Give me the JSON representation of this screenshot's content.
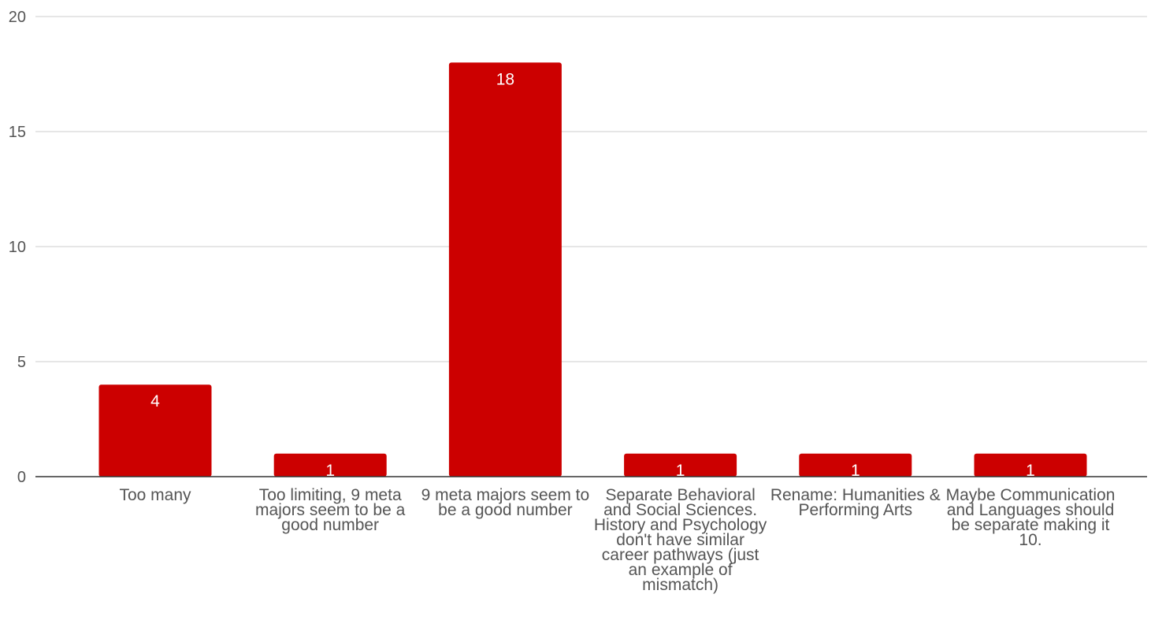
{
  "chart_data": {
    "type": "bar",
    "title": "",
    "xlabel": "",
    "ylabel": "",
    "ylim": [
      0,
      20
    ],
    "yticks": [
      0,
      5,
      10,
      15,
      20
    ],
    "grid": true,
    "legend": "none",
    "bar_color": "#cc0000",
    "categories": [
      "Too many",
      "Too limiting, 9 meta majors seem to be a good number",
      "9 meta majors seem to be a good number",
      "Separate Behavioral and Social Sciences.   History and Psychology don't have similar career pathways (just an example of mismatch)",
      "Rename: Humanities & Performing Arts",
      "Maybe Communication and Languages should be separate making it 10."
    ],
    "values": [
      4,
      1,
      18,
      1,
      1,
      1
    ],
    "data_labels": [
      "4",
      "1",
      "18",
      "1",
      "1",
      "1"
    ]
  }
}
